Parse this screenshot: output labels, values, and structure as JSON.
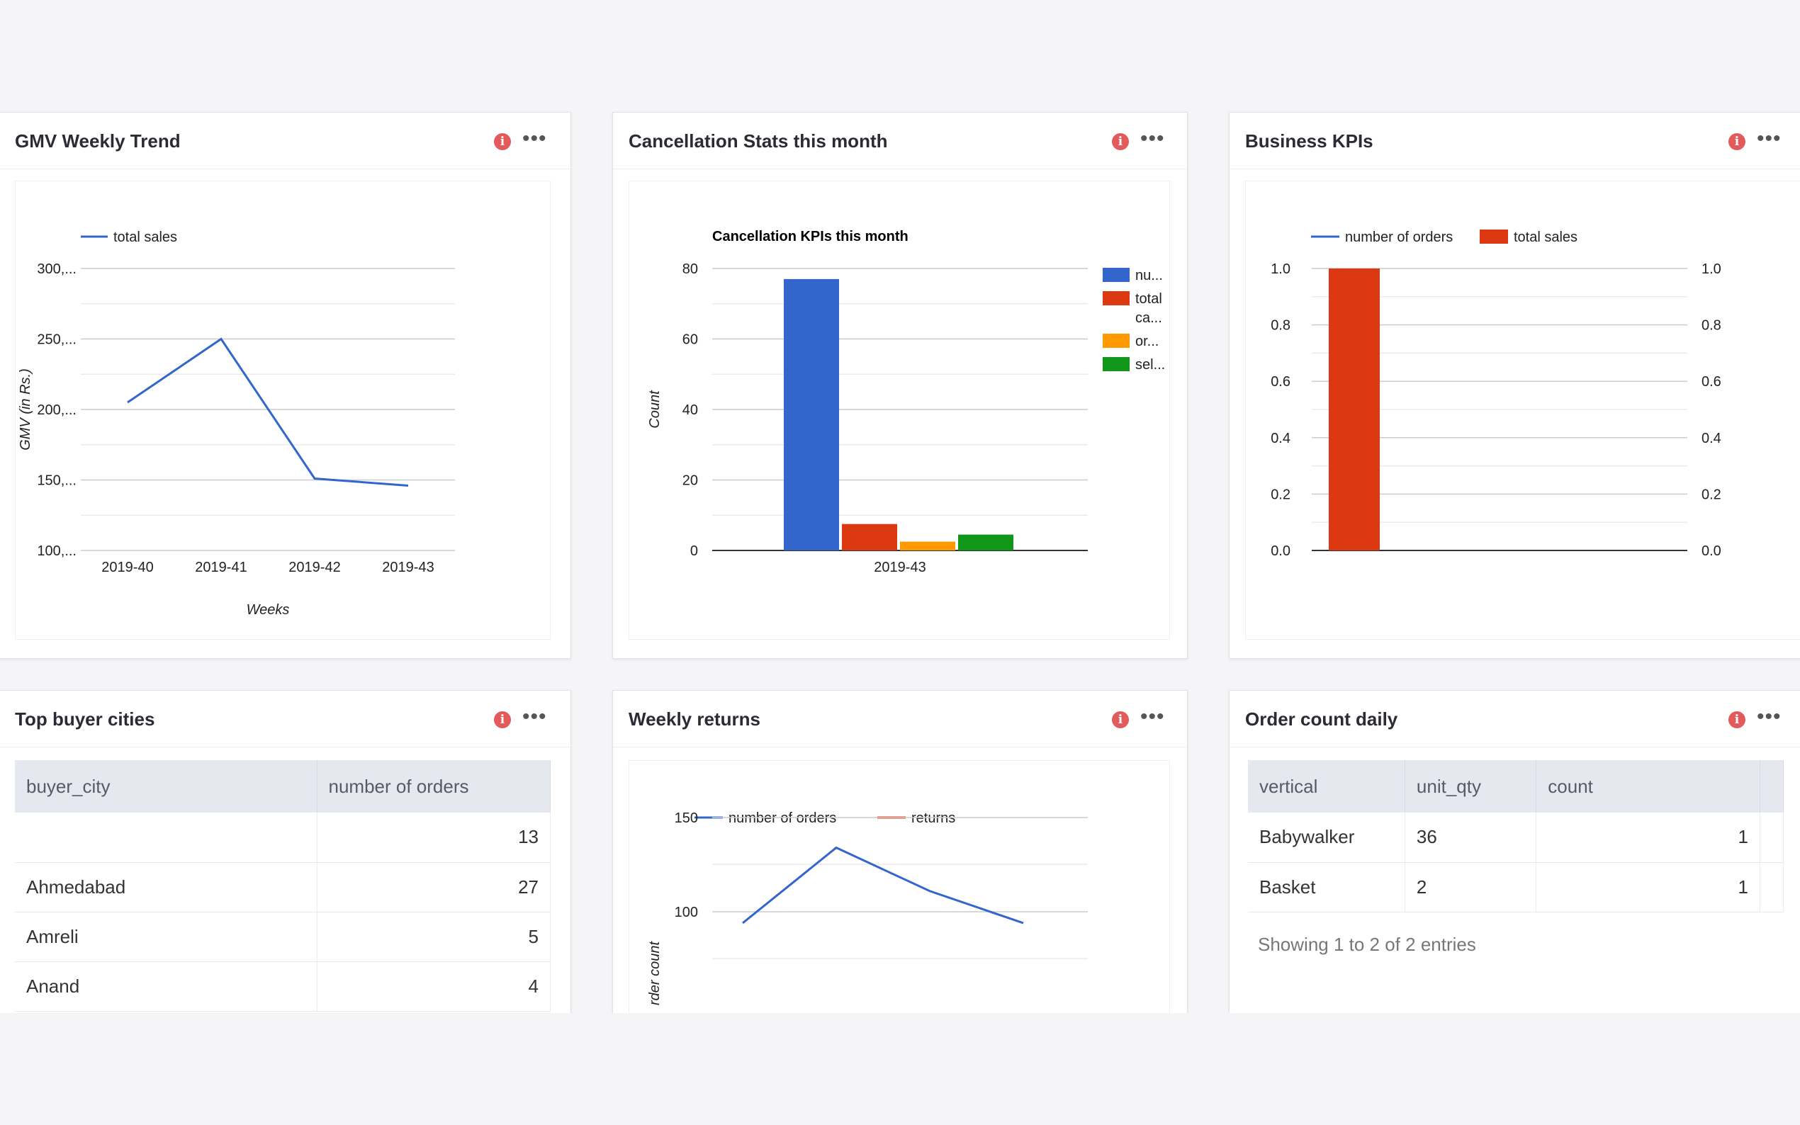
{
  "cards": {
    "gmv": {
      "title": "GMV Weekly Trend"
    },
    "cancel": {
      "title": "Cancellation Stats this month"
    },
    "kpi": {
      "title": "Business KPIs"
    },
    "cities": {
      "title": "Top buyer cities"
    },
    "returns": {
      "title": "Weekly returns"
    },
    "orders": {
      "title": "Order count daily"
    }
  },
  "icons": {
    "info": "info-icon",
    "more": "more-icon"
  },
  "chart_data": [
    {
      "type": "line",
      "title": "",
      "legend": [
        "total sales"
      ],
      "xlabel": "Weeks",
      "ylabel": "GMV (in Rs.)",
      "categories": [
        "2019-40",
        "2019-41",
        "2019-42",
        "2019-43"
      ],
      "series": [
        {
          "name": "total sales",
          "values": [
            205000,
            250000,
            151000,
            146000
          ],
          "color": "#3366cc"
        }
      ],
      "yticks": [
        "300,...",
        "250,...",
        "200,...",
        "150,...",
        "100,..."
      ],
      "ylim": [
        100000,
        300000
      ],
      "grid": true,
      "legend_position": "top-left"
    },
    {
      "type": "bar",
      "title": "Cancellation KPIs this month",
      "ylabel": "Count",
      "categories": [
        "2019-43"
      ],
      "series": [
        {
          "name": "nu...",
          "values": [
            77
          ],
          "color": "#3366cc"
        },
        {
          "name": "total ca...",
          "values": [
            7.5
          ],
          "color": "#dc3912"
        },
        {
          "name": "or...",
          "values": [
            2.5
          ],
          "color": "#ff9900"
        },
        {
          "name": "sel...",
          "values": [
            4.5
          ],
          "color": "#109618"
        }
      ],
      "ylim": [
        0,
        80
      ],
      "yticks": [
        "0",
        "20",
        "40",
        "60",
        "80"
      ],
      "grid": true,
      "legend_position": "right"
    },
    {
      "type": "bar",
      "title": "",
      "legend": [
        "number of orders",
        "total sales"
      ],
      "categories": [
        ""
      ],
      "series": [
        {
          "name": "number of orders",
          "values": [
            0
          ],
          "color": "#3366cc"
        },
        {
          "name": "total sales",
          "values": [
            1.0
          ],
          "color": "#dc3912"
        }
      ],
      "ylim": [
        0,
        1.0
      ],
      "yticks": [
        "0.0",
        "0.2",
        "0.4",
        "0.6",
        "0.8",
        "1.0"
      ],
      "grid": true,
      "legend_position": "top"
    },
    {
      "type": "line",
      "title": "",
      "legend": [
        "number of orders",
        "returns"
      ],
      "ylabel": "order count",
      "ylabel_visible": "rder count",
      "series": [
        {
          "name": "number of orders",
          "values": [
            94,
            134,
            111,
            94
          ],
          "color": "#3366cc"
        },
        {
          "name": "returns",
          "values": [],
          "color": "#dc3912"
        }
      ],
      "yticks": [
        "150",
        "100"
      ],
      "grid": true,
      "legend_position": "top-left"
    }
  ],
  "cities_table": {
    "headers": [
      "buyer_city",
      "number of orders"
    ],
    "rows": [
      [
        "",
        "13"
      ],
      [
        "Ahmedabad",
        "27"
      ],
      [
        "Amreli",
        "5"
      ],
      [
        "Anand",
        "4"
      ]
    ]
  },
  "orders_table": {
    "headers": [
      "vertical",
      "unit_qty",
      "count"
    ],
    "rows": [
      [
        "Babywalker",
        "36",
        "1"
      ],
      [
        "Basket",
        "2",
        "1"
      ]
    ],
    "footer": "Showing 1 to 2 of 2 entries"
  }
}
